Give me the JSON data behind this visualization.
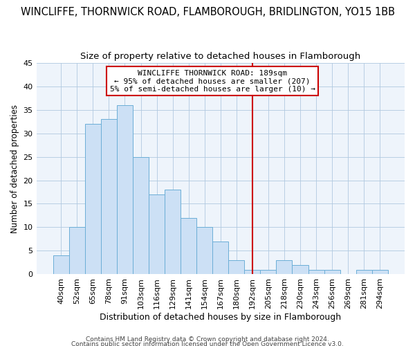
{
  "title": "WINCLIFFE, THORNWICK ROAD, FLAMBOROUGH, BRIDLINGTON, YO15 1BB",
  "subtitle": "Size of property relative to detached houses in Flamborough",
  "xlabel": "Distribution of detached houses by size in Flamborough",
  "ylabel": "Number of detached properties",
  "bar_labels": [
    "40sqm",
    "52sqm",
    "65sqm",
    "78sqm",
    "91sqm",
    "103sqm",
    "116sqm",
    "129sqm",
    "141sqm",
    "154sqm",
    "167sqm",
    "180sqm",
    "192sqm",
    "205sqm",
    "218sqm",
    "230sqm",
    "243sqm",
    "256sqm",
    "269sqm",
    "281sqm",
    "294sqm"
  ],
  "bar_values": [
    4,
    10,
    32,
    33,
    36,
    25,
    17,
    18,
    12,
    10,
    7,
    3,
    1,
    1,
    3,
    2,
    1,
    1,
    0,
    1,
    1
  ],
  "bar_color": "#cce0f5",
  "bar_edge_color": "#6baed6",
  "vline_color": "#cc0000",
  "vline_x_index": 12,
  "ylim": [
    0,
    45
  ],
  "yticks": [
    0,
    5,
    10,
    15,
    20,
    25,
    30,
    35,
    40,
    45
  ],
  "annotation_text": "WINCLIFFE THORNWICK ROAD: 189sqm\n← 95% of detached houses are smaller (207)\n5% of semi-detached houses are larger (10) →",
  "annotation_box_color": "#ffffff",
  "annotation_box_edge": "#cc0000",
  "footer1": "Contains HM Land Registry data © Crown copyright and database right 2024.",
  "footer2": "Contains public sector information licensed under the Open Government Licence v3.0.",
  "title_fontsize": 10.5,
  "subtitle_fontsize": 9.5,
  "tick_fontsize": 8,
  "ylabel_fontsize": 8.5,
  "xlabel_fontsize": 9,
  "annotation_fontsize": 8,
  "footer_fontsize": 6.5,
  "bg_color": "#eef4fb"
}
